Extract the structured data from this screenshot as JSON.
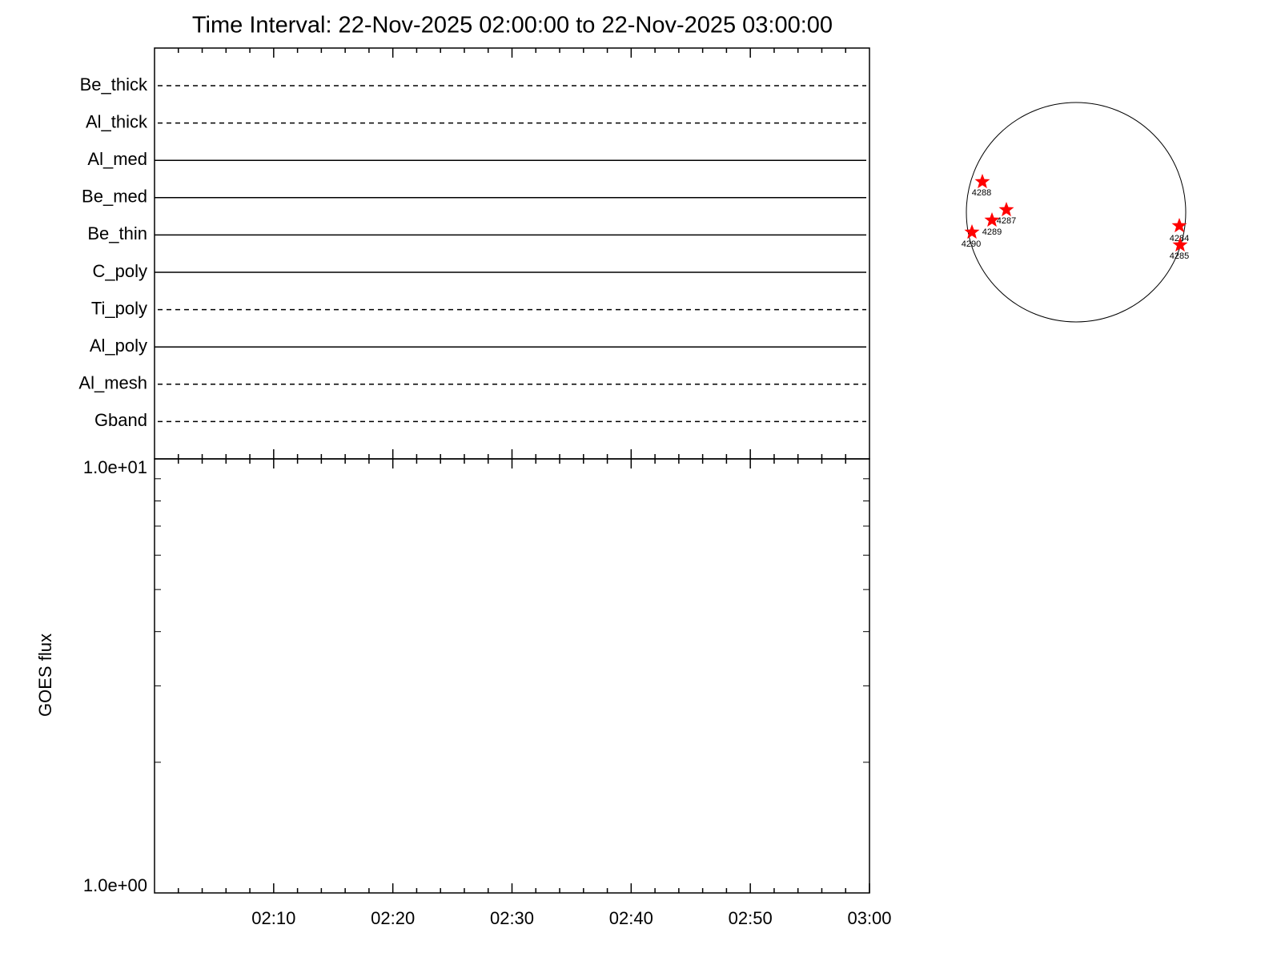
{
  "title": "Time Interval: 22-Nov-2025 02:00:00 to 22-Nov-2025 03:00:00",
  "chart_data": [
    {
      "type": "channels",
      "categories": [
        "Be_thick",
        "Al_thick",
        "Al_med",
        "Be_med",
        "Be_thin",
        "C_poly",
        "Ti_poly",
        "Al_poly",
        "Al_mesh",
        "Gband"
      ],
      "line_styles": [
        "dashed",
        "dashed",
        "solid",
        "solid",
        "solid",
        "solid",
        "dashed",
        "solid",
        "dashed",
        "dashed"
      ],
      "xlim": [
        "02:00",
        "03:00"
      ]
    },
    {
      "type": "line",
      "y_label": "GOES flux",
      "log_scale": true,
      "ylim": [
        1,
        10
      ],
      "yticks": [
        {
          "value": 1,
          "label": "1.0e+00"
        },
        {
          "value": 10,
          "label": "1.0e+01"
        }
      ],
      "xlim": [
        "02:00",
        "03:00"
      ],
      "xticks": [
        "02:10",
        "02:20",
        "02:30",
        "02:40",
        "02:50",
        "03:00"
      ]
    },
    {
      "type": "disk",
      "labels": [
        "4288",
        "4287",
        "4289",
        "4290",
        "4284",
        "4285"
      ],
      "color": "#ff0000"
    }
  ]
}
